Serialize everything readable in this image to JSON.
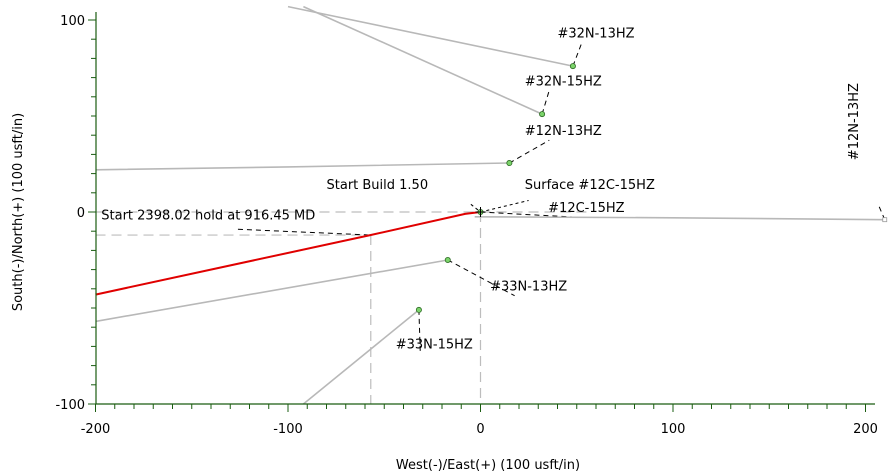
{
  "chart_data": {
    "type": "line",
    "xlabel": "West(-)/East(+) (100 usft/in)",
    "ylabel": "South(-)/North(+) (100 usft/in)",
    "xlim": [
      -200,
      210
    ],
    "ylim": [
      -100,
      110
    ],
    "x_ticks": [
      -200,
      -100,
      0,
      100,
      200
    ],
    "y_ticks": [
      -100,
      0,
      100
    ],
    "x_tick_labels": [
      "-200",
      "-100",
      "0",
      "100",
      "200"
    ],
    "y_tick_labels": [
      "-100",
      "0",
      "100"
    ],
    "grid": false,
    "series": [
      {
        "name": "#12C-15HZ",
        "color": "#e00000",
        "points": [
          [
            -200,
            -43
          ],
          [
            -57,
            -12
          ],
          [
            -8,
            -1
          ],
          [
            0,
            0
          ]
        ],
        "label": "#12C-15HZ",
        "label_anchor": [
          55,
          0
        ]
      },
      {
        "name": "#32N-13HZ",
        "color": "#b8b8b8",
        "points": [
          [
            -100,
            107
          ],
          [
            48,
            76
          ]
        ],
        "label": "#32N-13HZ",
        "label_anchor": [
          60,
          91
        ]
      },
      {
        "name": "#32N-15HZ",
        "color": "#b8b8b8",
        "points": [
          [
            -92,
            107
          ],
          [
            32,
            51
          ]
        ],
        "label": "#32N-15HZ",
        "label_anchor": [
          43,
          66
        ]
      },
      {
        "name": "#12N-13HZ",
        "color": "#b8b8b8",
        "points": [
          [
            -200,
            22
          ],
          [
            -100,
            23.5
          ],
          [
            15,
            25.5
          ]
        ],
        "label": "#12N-13HZ",
        "label_anchor": [
          43,
          40
        ]
      },
      {
        "name": "#12N-13HZ",
        "color": "#b8b8b8",
        "points": [
          [
            -3,
            -2.5
          ],
          [
            100,
            -3
          ],
          [
            210,
            -4
          ]
        ],
        "label": "#12N-13HZ",
        "label_anchor": [
          196,
          27
        ],
        "label_vertical": true
      },
      {
        "name": "#33N-13HZ",
        "color": "#b8b8b8",
        "points": [
          [
            -200,
            -57
          ],
          [
            -17,
            -25
          ]
        ],
        "label": "#33N-13HZ",
        "label_anchor": [
          25,
          -41
        ]
      },
      {
        "name": "#33N-15HZ",
        "color": "#b8b8b8",
        "points": [
          [
            -92,
            -100
          ],
          [
            -32,
            -51
          ]
        ],
        "label": "#33N-15HZ",
        "label_anchor": [
          -24,
          -71
        ]
      }
    ],
    "annotations": [
      {
        "text": "Start Build 1.50",
        "x": -80,
        "y": 12
      },
      {
        "text": "Surface #12C-15HZ",
        "x": 23,
        "y": 12
      },
      {
        "text": "Start 2398.02 hold at 916.45 MD",
        "x": -197,
        "y": -4
      }
    ],
    "reference_lines": [
      {
        "type": "vertical",
        "x": -57,
        "y_from": -12,
        "y_to": -100
      },
      {
        "type": "vertical",
        "x": 0,
        "y_from": 0,
        "y_to": -100
      },
      {
        "type": "horizontal",
        "y": 0,
        "x_from": -200,
        "x_to": 0
      },
      {
        "type": "horizontal",
        "y": -12,
        "x_from": -200,
        "x_to": -57
      }
    ]
  }
}
